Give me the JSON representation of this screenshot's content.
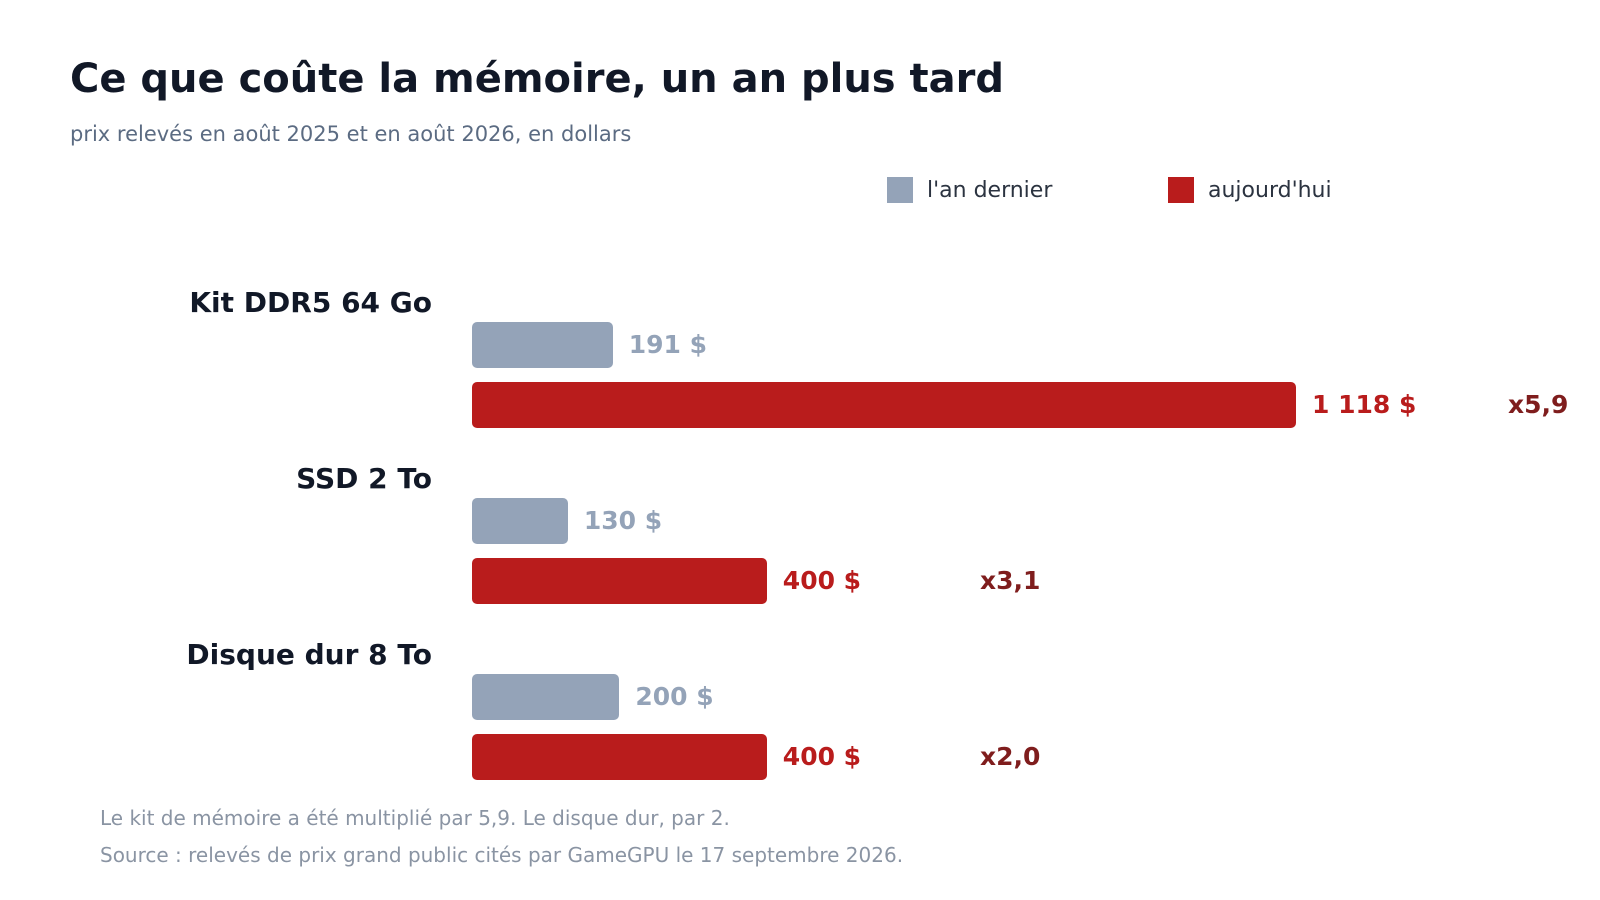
{
  "colors": {
    "last_year": "#94a3b8",
    "today": "#b91c1c",
    "last_year_text": "#94a3b8",
    "today_text": "#b91c1c",
    "ratio_text": "#7f1d1d"
  },
  "chart_data": {
    "type": "bar",
    "orientation": "horizontal",
    "title": "Ce que coûte la mémoire, un an plus tard",
    "subtitle": "prix relevés en août 2025 et en août 2026, en dollars",
    "legend_position": "top-right",
    "grid": false,
    "xlim": [
      0,
      1118
    ],
    "categories": [
      "Kit DDR5 64 Go",
      "SSD 2 To",
      "Disque dur 8 To"
    ],
    "series": [
      {
        "name": "l'an dernier",
        "values": [
          191,
          130,
          200
        ],
        "labels": [
          "191 $",
          "130 $",
          "200 $"
        ]
      },
      {
        "name": "aujourd'hui",
        "values": [
          1118,
          400,
          400
        ],
        "labels": [
          "1 118 $",
          "400 $",
          "400 $"
        ]
      }
    ],
    "ratios": [
      "x5,9",
      "x3,1",
      "x2,0"
    ]
  },
  "notes": [
    "Le kit de mémoire a été multiplié par 5,9. Le disque dur, par 2.",
    "Source : relevés de prix grand public cités par GameGPU le 17 septembre 2026."
  ]
}
